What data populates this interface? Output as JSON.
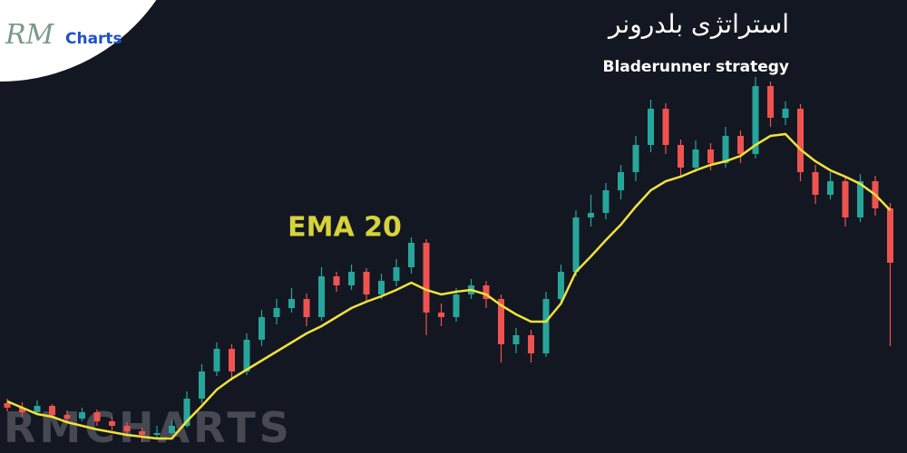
{
  "chart_data": {
    "type": "candlestick",
    "title": "استراتژی بلدرونر",
    "subtitle": "Bladerunner strategy",
    "annotation": "EMA 20",
    "logo": {
      "mark": "RM",
      "text": "Charts"
    },
    "watermark": "RMCHARTS",
    "up_color": "#26a69a",
    "down_color": "#ef5350",
    "ema_color": "#f2e23a",
    "ylim": [
      0,
      500
    ],
    "open": [
      55,
      50,
      45,
      52,
      42,
      38,
      45,
      35,
      30,
      24,
      20,
      22,
      30,
      60,
      90,
      115,
      90,
      125,
      150,
      160,
      170,
      150,
      195,
      185,
      200,
      175,
      190,
      205,
      232,
      155,
      150,
      175,
      185,
      170,
      120,
      130,
      110,
      170,
      200,
      260,
      265,
      290,
      310,
      340,
      380,
      340,
      315,
      335,
      320,
      350,
      330,
      405,
      370,
      380,
      310,
      285,
      300,
      260,
      300,
      270
    ],
    "high": [
      60,
      56,
      58,
      54,
      47,
      50,
      48,
      40,
      34,
      28,
      30,
      36,
      68,
      98,
      122,
      120,
      132,
      158,
      170,
      182,
      176,
      205,
      200,
      208,
      204,
      198,
      214,
      238,
      236,
      165,
      182,
      192,
      190,
      175,
      138,
      136,
      178,
      208,
      268,
      285,
      298,
      318,
      350,
      390,
      386,
      346,
      345,
      342,
      360,
      356,
      415,
      410,
      388,
      385,
      318,
      310,
      305,
      308,
      306,
      276
    ],
    "low": [
      46,
      40,
      43,
      38,
      33,
      35,
      30,
      25,
      18,
      12,
      17,
      20,
      28,
      55,
      85,
      80,
      86,
      118,
      142,
      155,
      140,
      146,
      178,
      180,
      168,
      170,
      184,
      198,
      130,
      140,
      145,
      170,
      160,
      100,
      110,
      100,
      106,
      165,
      195,
      250,
      258,
      280,
      300,
      332,
      330,
      305,
      310,
      312,
      315,
      320,
      325,
      360,
      362,
      300,
      275,
      280,
      250,
      255,
      262,
      118
    ],
    "close": [
      50,
      45,
      52,
      42,
      38,
      45,
      35,
      30,
      24,
      20,
      22,
      30,
      60,
      90,
      115,
      90,
      125,
      150,
      160,
      170,
      150,
      195,
      185,
      200,
      175,
      190,
      205,
      232,
      155,
      150,
      175,
      185,
      170,
      120,
      130,
      110,
      170,
      200,
      260,
      265,
      290,
      310,
      340,
      380,
      340,
      315,
      335,
      320,
      350,
      330,
      405,
      370,
      380,
      310,
      285,
      300,
      260,
      300,
      270,
      210
    ],
    "ema": [
      57,
      50,
      43,
      40,
      34,
      30,
      26,
      23,
      20,
      18,
      16,
      16,
      35,
      52,
      70,
      82,
      92,
      102,
      112,
      122,
      132,
      140,
      150,
      160,
      167,
      173,
      180,
      188,
      180,
      175,
      178,
      180,
      175,
      163,
      153,
      145,
      145,
      165,
      200,
      217,
      235,
      252,
      272,
      290,
      300,
      305,
      312,
      318,
      322,
      328,
      340,
      350,
      352,
      335,
      322,
      312,
      305,
      297,
      285,
      268
    ]
  }
}
